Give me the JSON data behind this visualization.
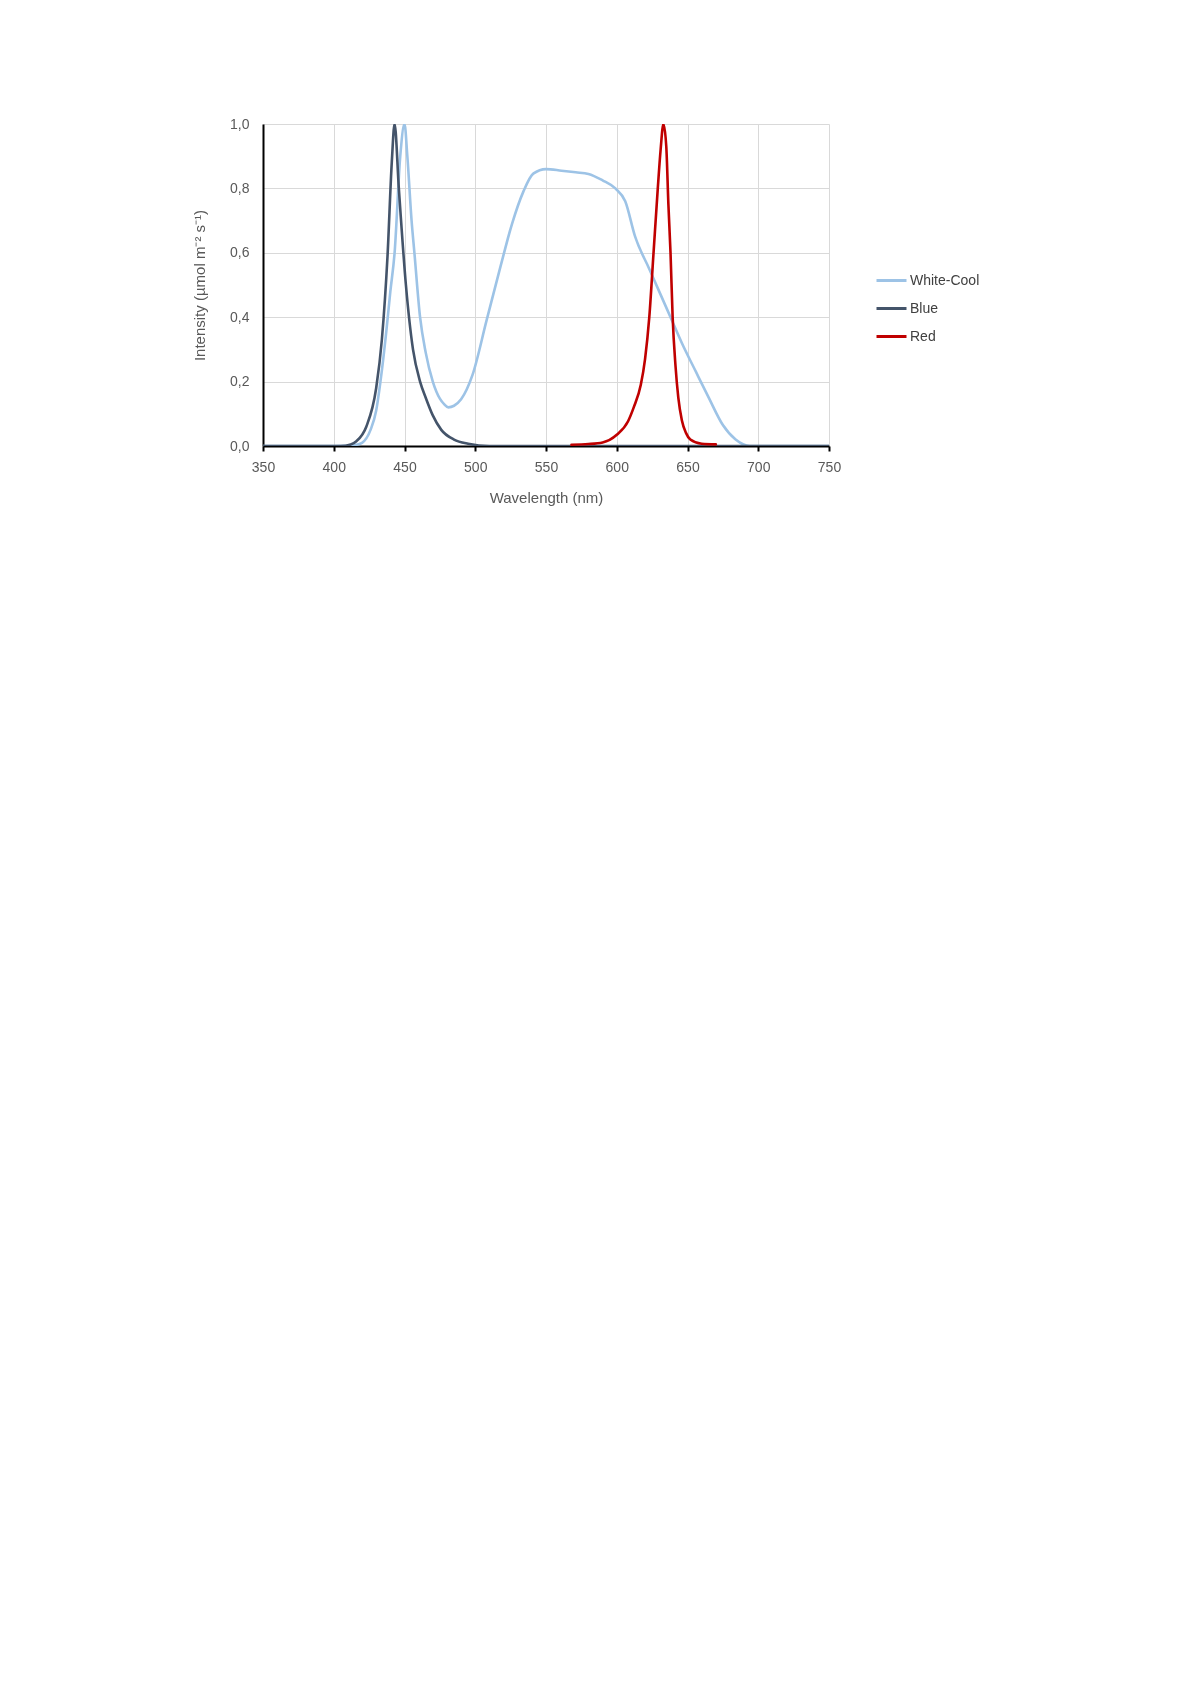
{
  "chart_data": {
    "type": "line",
    "xlabel": "Wavelength (nm)",
    "ylabel": "Intensity (µmol m⁻² s⁻¹)",
    "xlim": [
      350,
      750
    ],
    "xticks": [
      350,
      400,
      450,
      500,
      550,
      600,
      650,
      700,
      750
    ],
    "ylim": [
      0,
      1
    ],
    "yticks": [
      {
        "value": 0,
        "label": "0,0"
      },
      {
        "value": 0.2,
        "label": "0,2"
      },
      {
        "value": 0.4,
        "label": "0,4"
      },
      {
        "value": 0.6,
        "label": "0,6"
      },
      {
        "value": 0.8,
        "label": "0,8"
      },
      {
        "value": 1,
        "label": "1,0"
      }
    ],
    "grid": true,
    "legend": "right",
    "line_style": "solid",
    "series": [
      {
        "name": "White-Cool",
        "color": "#9dc3e6",
        "x": [
          350,
          400,
          415,
          420,
          426,
          430,
          433,
          437,
          440,
          443,
          447,
          450,
          452,
          455,
          457,
          461,
          465,
          470,
          475,
          478,
          481,
          485,
          490,
          498,
          508,
          518,
          526,
          534,
          541,
          550,
          561,
          571,
          580,
          590,
          599,
          606,
          613,
          623,
          632,
          639,
          646,
          656,
          665,
          675,
          684,
          694,
          750
        ],
        "values": [
          0,
          0,
          0.003,
          0.01,
          0.05,
          0.11,
          0.2,
          0.35,
          0.48,
          0.6,
          0.9,
          1.0,
          0.9,
          0.7,
          0.6,
          0.4,
          0.29,
          0.2,
          0.147,
          0.13,
          0.12,
          0.125,
          0.145,
          0.22,
          0.39,
          0.56,
          0.69,
          0.79,
          0.846,
          0.86,
          0.855,
          0.85,
          0.845,
          0.825,
          0.8,
          0.76,
          0.65,
          0.55,
          0.46,
          0.39,
          0.32,
          0.23,
          0.15,
          0.065,
          0.02,
          0,
          0
        ]
      },
      {
        "name": "Blue",
        "color": "#44546a",
        "x": [
          350,
          405,
          412,
          416,
          423,
          430,
          434,
          438,
          441,
          443,
          446,
          451,
          456,
          461,
          465,
          470,
          476,
          485,
          495,
          510,
          750
        ],
        "values": [
          0,
          0,
          0.005,
          0.015,
          0.06,
          0.18,
          0.33,
          0.59,
          0.88,
          1.0,
          0.8,
          0.5,
          0.3,
          0.2,
          0.15,
          0.095,
          0.05,
          0.02,
          0.007,
          0,
          0
        ]
      },
      {
        "name": "Red",
        "color": "#c00000",
        "x": [
          568,
          580,
          590,
          600,
          608,
          612,
          617,
          620,
          623,
          626,
          629,
          631,
          633,
          635,
          636.5,
          638,
          639.5,
          641.5,
          643.5,
          646,
          649,
          652,
          660,
          670
        ],
        "values": [
          0.004,
          0.006,
          0.011,
          0.035,
          0.077,
          0.12,
          0.19,
          0.27,
          0.4,
          0.6,
          0.8,
          0.92,
          1.0,
          0.93,
          0.75,
          0.6,
          0.4,
          0.25,
          0.15,
          0.08,
          0.04,
          0.02,
          0.007,
          0.005
        ]
      }
    ]
  }
}
